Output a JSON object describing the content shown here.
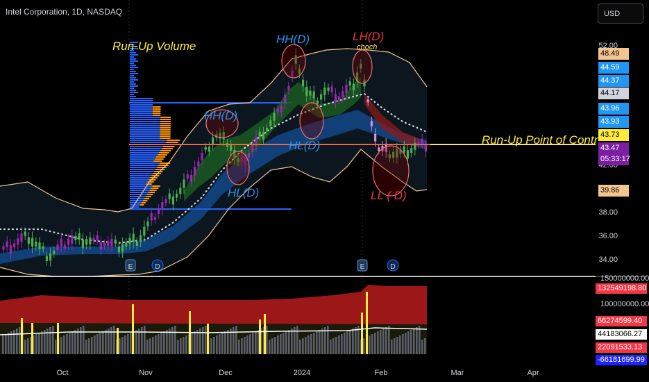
{
  "header": {
    "symbol_title": "Intel Corporation, 1D, NASDAQ",
    "currency_button": "USD"
  },
  "price_axis": {
    "labels": [
      "52.00",
      "42.00",
      "38.00",
      "36.00",
      "34.00"
    ],
    "badges": [
      {
        "text": "48.49",
        "bg": "#f5c58f",
        "fg": "#000000"
      },
      {
        "text": "44.59",
        "bg": "#2196f3",
        "fg": "#ffffff"
      },
      {
        "text": "44.37",
        "bg": "#2196f3",
        "fg": "#ffffff"
      },
      {
        "text": "44.17",
        "bg": "#d1d4dc",
        "fg": "#000000"
      },
      {
        "text": "43.96",
        "bg": "#2196f3",
        "fg": "#ffffff"
      },
      {
        "text": "43.93",
        "bg": "#2196f3",
        "fg": "#ffffff"
      },
      {
        "text": "43.73",
        "bg": "#ffeb3b",
        "fg": "#000000"
      },
      {
        "text": "43.47",
        "bg": "#7b1fa2",
        "fg": "#ffffff"
      },
      {
        "text": "05:33:17",
        "bg": "#7b1fa2",
        "fg": "#ffffff"
      },
      {
        "text": "39.86",
        "bg": "#f5c58f",
        "fg": "#000000"
      }
    ]
  },
  "volume_axis": {
    "labels": [
      "150000000.00",
      "100000000.00"
    ],
    "badges": [
      {
        "text": "132549198.80",
        "bg": "#f23645",
        "fg": "#ffffff"
      },
      {
        "text": "66274599.40",
        "bg": "#f23645",
        "fg": "#ffffff"
      },
      {
        "text": "44183066.27",
        "bg": "#ffffff",
        "fg": "#000000"
      },
      {
        "text": "22091533.13",
        "bg": "#f23645",
        "fg": "#ffffff"
      },
      {
        "text": "-66181699.99",
        "bg": "#1e22ff",
        "fg": "#ffffff"
      }
    ]
  },
  "time_axis": {
    "labels": [
      "Oct",
      "Nov",
      "Dec",
      "2024",
      "Feb",
      "Mar",
      "Apr"
    ]
  },
  "annotations": {
    "run_up_volume": "Run-Up Volume",
    "run_up_poc": "Run-Up Point of Contr",
    "hh1": "HH(D)",
    "hh2": "HH(D)",
    "lh": "LH(D)",
    "choch": "choch",
    "hl1": "HL(D)",
    "hl2": "HL(D)",
    "ll": "LL ( D)"
  },
  "event_markers": [
    "E",
    "D",
    "E",
    "D"
  ],
  "colors": {
    "background": "#000000",
    "poc_line": "#ffeb3b",
    "bollinger": "#f5c58f",
    "profile_blue": "#2962ff",
    "profile_orange": "#ff9800",
    "bull": "#26a69a",
    "bear": "#ef5350",
    "volume_fill": "#b71c1c",
    "volume_spike": "#ffeb3b"
  }
}
